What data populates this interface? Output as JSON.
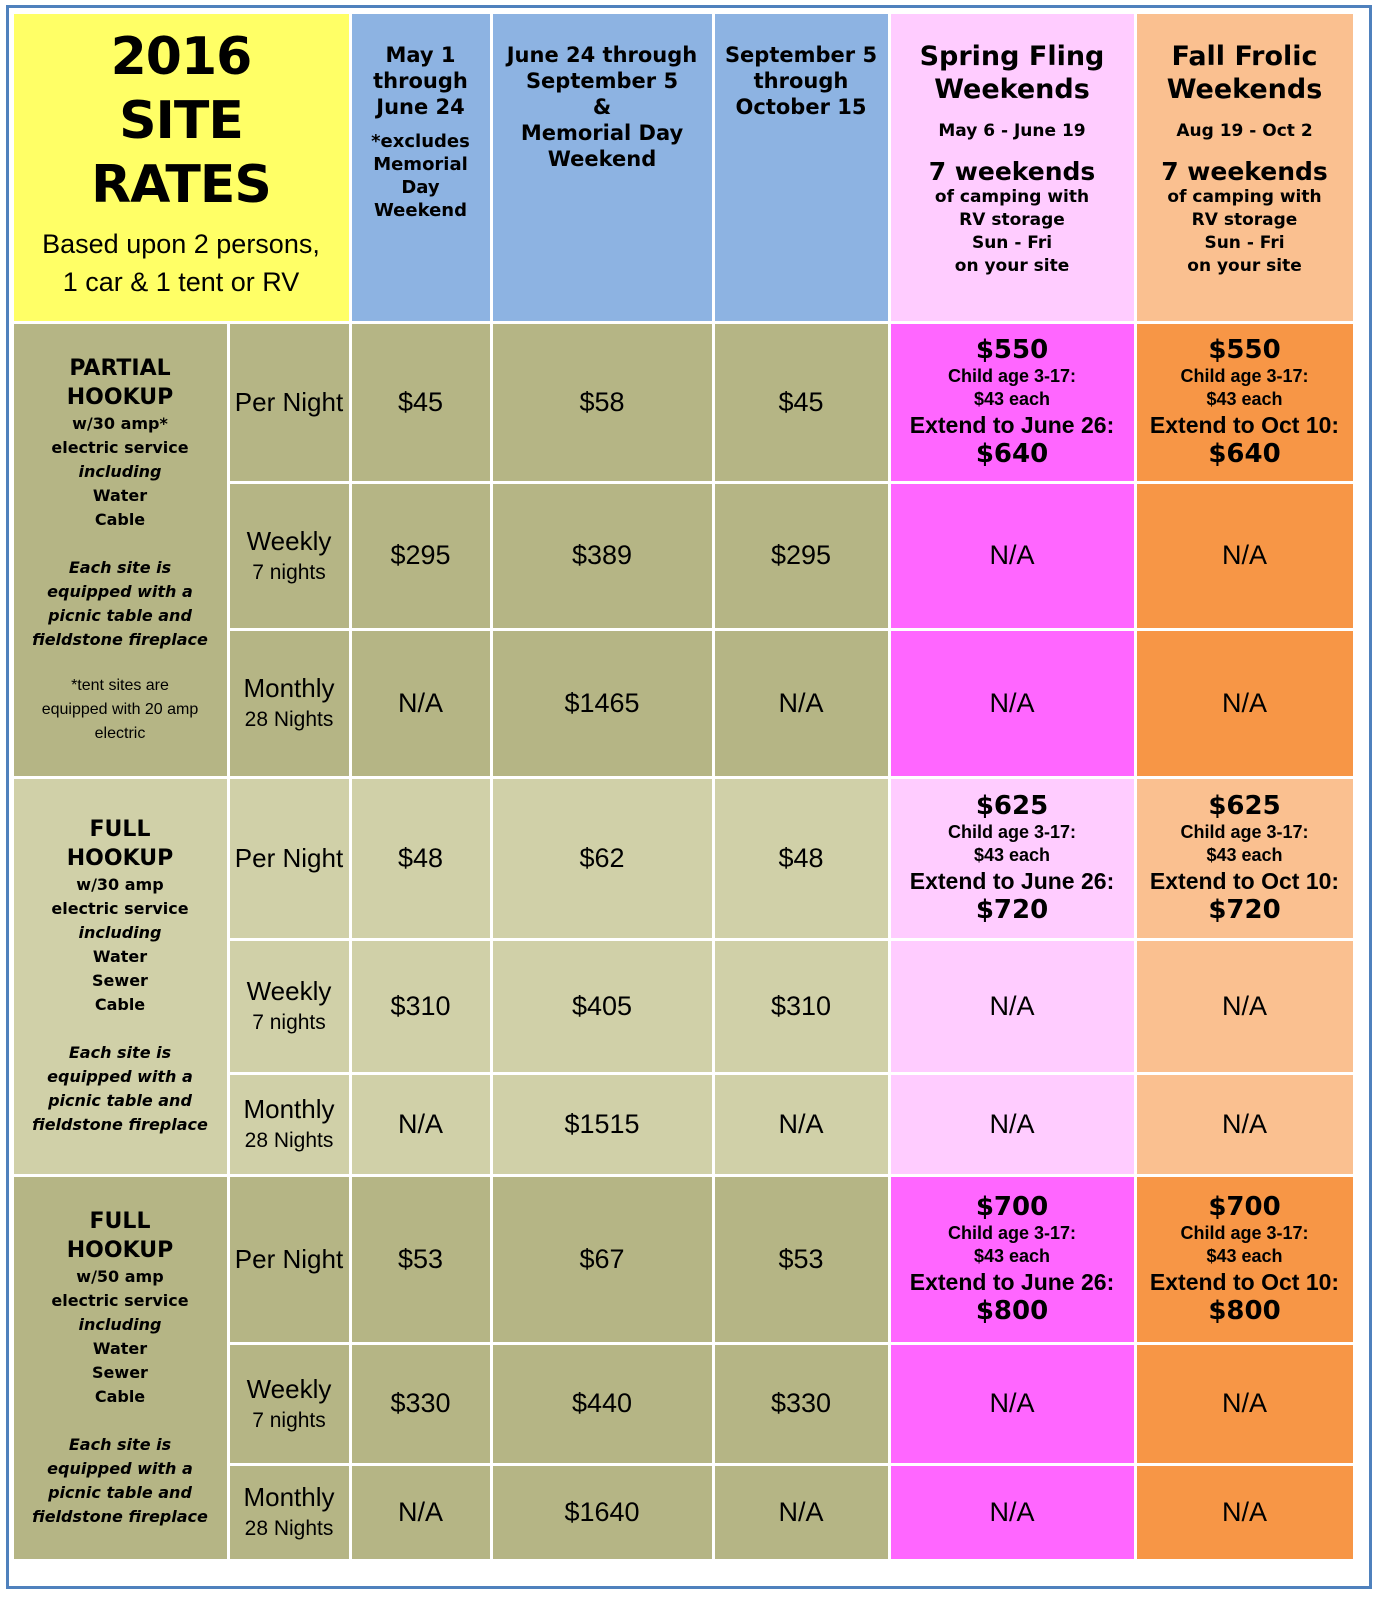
{
  "title": {
    "line1": "2016",
    "line2": "SITE",
    "line3": "RATES",
    "sub1": "Based upon 2 persons,",
    "sub2": "1 car & 1 tent or RV"
  },
  "columns": {
    "c1": {
      "l1": "May 1",
      "l2": "through",
      "l3": "June 24",
      "note1": "*excludes",
      "note2": "Memorial",
      "note3": "Day",
      "note4": "Weekend"
    },
    "c2": {
      "l1": "June 24 through",
      "l2": "September 5",
      "l3": "&",
      "l4": "Memorial Day",
      "l5": "Weekend"
    },
    "c3": {
      "l1": "September 5",
      "l2": "through",
      "l3": "October 15"
    },
    "spring": {
      "t1": "Spring Fling",
      "t2": "Weekends",
      "dates": "May 6 - June 19",
      "big": "7 weekends",
      "s1": "of camping with",
      "s2": "RV storage",
      "s3": "Sun - Fri",
      "s4": "on your site"
    },
    "fall": {
      "t1": "Fall Frolic",
      "t2": "Weekends",
      "dates": "Aug 19 - Oct 2",
      "big": "7 weekends",
      "s1": "of camping with",
      "s2": "RV storage",
      "s3": "Sun - Fri",
      "s4": "on your site"
    }
  },
  "periods": {
    "night": "Per Night",
    "weekly": "Weekly",
    "weekly_sub": "7 nights",
    "monthly": "Monthly",
    "monthly_sub": "28 Nights"
  },
  "site_types": [
    {
      "name1": "PARTIAL",
      "name2": "HOOKUP",
      "d1": "w/30 amp*",
      "d2": "electric service",
      "d3": "including",
      "d4": "Water",
      "d5": "Cable",
      "d6": "",
      "e1": "Each site is",
      "e2": "equipped with a",
      "e3": "picnic table and",
      "e4": "fieldstone fireplace",
      "n1": "*tent sites are",
      "n2": "equipped with 20 amp",
      "n3": "electric",
      "night": [
        "$45",
        "$58",
        "$45"
      ],
      "weekly": [
        "$295",
        "$389",
        "$295"
      ],
      "monthly": [
        "N/A",
        "$1465",
        "N/A"
      ],
      "spring": {
        "price": "$550",
        "child1": "Child age 3-17:",
        "child2": "$43 each",
        "ext": "Extend to June 26:",
        "ext_price": "$640",
        "weekly": "N/A",
        "monthly": "N/A"
      },
      "fall": {
        "price": "$550",
        "child1": "Child age 3-17:",
        "child2": "$43 each",
        "ext": "Extend to Oct 10:",
        "ext_price": "$640",
        "weekly": "N/A",
        "monthly": "N/A"
      }
    },
    {
      "name1": "FULL",
      "name2": "HOOKUP",
      "d1": "w/30 amp",
      "d2": "electric service",
      "d3": "including",
      "d4": "Water",
      "d5": "Sewer",
      "d6": "Cable",
      "e1": "Each site is",
      "e2": "equipped with a",
      "e3": "picnic table and",
      "e4": "fieldstone fireplace",
      "night": [
        "$48",
        "$62",
        "$48"
      ],
      "weekly": [
        "$310",
        "$405",
        "$310"
      ],
      "monthly": [
        "N/A",
        "$1515",
        "N/A"
      ],
      "spring": {
        "price": "$625",
        "child1": "Child age 3-17:",
        "child2": "$43 each",
        "ext": "Extend to June 26:",
        "ext_price": "$720",
        "weekly": "N/A",
        "monthly": "N/A"
      },
      "fall": {
        "price": "$625",
        "child1": "Child age 3-17:",
        "child2": "$43 each",
        "ext": "Extend to Oct 10:",
        "ext_price": "$720",
        "weekly": "N/A",
        "monthly": "N/A"
      }
    },
    {
      "name1": "FULL",
      "name2": "HOOKUP",
      "d1": "w/50 amp",
      "d2": "electric service",
      "d3": "including",
      "d4": "Water",
      "d5": "Sewer",
      "d6": "Cable",
      "e1": "Each site is",
      "e2": "equipped with a",
      "e3": "picnic table and",
      "e4": "fieldstone fireplace",
      "night": [
        "$53",
        "$67",
        "$53"
      ],
      "weekly": [
        "$330",
        "$440",
        "$330"
      ],
      "monthly": [
        "N/A",
        "$1640",
        "N/A"
      ],
      "spring": {
        "price": "$700",
        "child1": "Child age 3-17:",
        "child2": "$43 each",
        "ext": "Extend to June 26:",
        "ext_price": "$800",
        "weekly": "N/A",
        "monthly": "N/A"
      },
      "fall": {
        "price": "$700",
        "child1": "Child age 3-17:",
        "child2": "$43 each",
        "ext": "Extend to Oct 10:",
        "ext_price": "$800",
        "weekly": "N/A",
        "monthly": "N/A"
      }
    }
  ],
  "colors": {
    "title_bg": "#ffff66",
    "date_col_bg": "#8db3e2",
    "spring_light": "#ffccff",
    "spring_dark": "#ff66ff",
    "fall_light": "#fac090",
    "fall_dark": "#f79646",
    "olive_dark": "#b5b585",
    "olive_light": "#d0d0a8",
    "border": "#4f81bd"
  }
}
